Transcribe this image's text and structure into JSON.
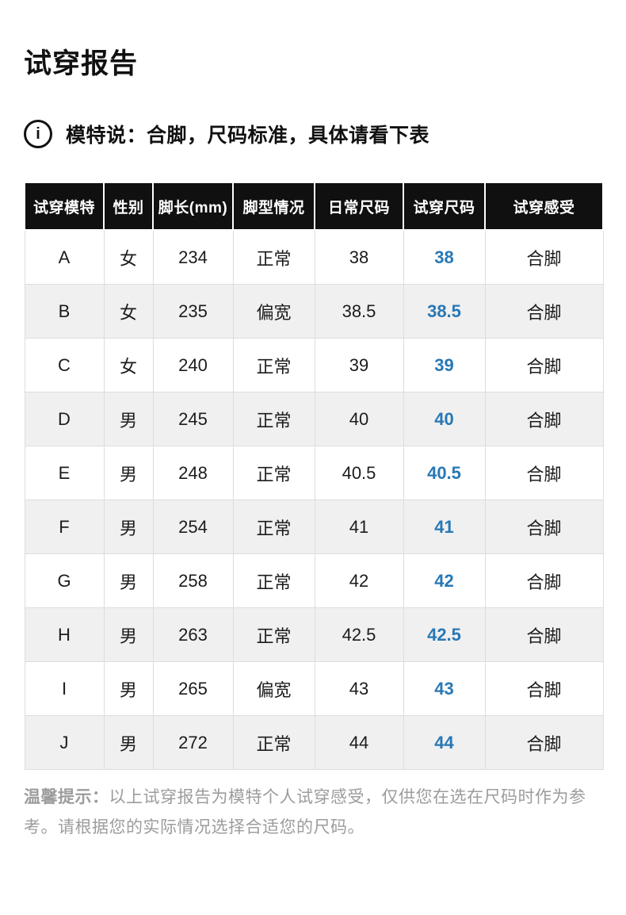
{
  "page": {
    "title": "试穿报告"
  },
  "notice": {
    "icon": "info-circle-icon",
    "icon_glyph": "i",
    "text": "模特说：合脚，尺码标准，具体请看下表"
  },
  "table": {
    "columns": [
      "试穿模特",
      "性别",
      "脚长(mm)",
      "脚型情况",
      "日常尺码",
      "试穿尺码",
      "试穿感受"
    ],
    "rows": [
      {
        "model": "A",
        "gender": "女",
        "foot_length": "234",
        "foot_type": "正常",
        "daily_size": "38",
        "tried_size": "38",
        "feel": "合脚"
      },
      {
        "model": "B",
        "gender": "女",
        "foot_length": "235",
        "foot_type": "偏宽",
        "daily_size": "38.5",
        "tried_size": "38.5",
        "feel": "合脚"
      },
      {
        "model": "C",
        "gender": "女",
        "foot_length": "240",
        "foot_type": "正常",
        "daily_size": "39",
        "tried_size": "39",
        "feel": "合脚"
      },
      {
        "model": "D",
        "gender": "男",
        "foot_length": "245",
        "foot_type": "正常",
        "daily_size": "40",
        "tried_size": "40",
        "feel": "合脚"
      },
      {
        "model": "E",
        "gender": "男",
        "foot_length": "248",
        "foot_type": "正常",
        "daily_size": "40.5",
        "tried_size": "40.5",
        "feel": "合脚"
      },
      {
        "model": "F",
        "gender": "男",
        "foot_length": "254",
        "foot_type": "正常",
        "daily_size": "41",
        "tried_size": "41",
        "feel": "合脚"
      },
      {
        "model": "G",
        "gender": "男",
        "foot_length": "258",
        "foot_type": "正常",
        "daily_size": "42",
        "tried_size": "42",
        "feel": "合脚"
      },
      {
        "model": "H",
        "gender": "男",
        "foot_length": "263",
        "foot_type": "正常",
        "daily_size": "42.5",
        "tried_size": "42.5",
        "feel": "合脚"
      },
      {
        "model": "I",
        "gender": "男",
        "foot_length": "265",
        "foot_type": "偏宽",
        "daily_size": "43",
        "tried_size": "43",
        "feel": "合脚"
      },
      {
        "model": "J",
        "gender": "男",
        "foot_length": "272",
        "foot_type": "正常",
        "daily_size": "44",
        "tried_size": "44",
        "feel": "合脚"
      }
    ]
  },
  "footer": {
    "label": "温馨提示：",
    "text": "以上试穿报告为模特个人试穿感受，仅供您在选在尺码时作为参考。请根据您的实际情况选择合适您的尺码。"
  },
  "colors": {
    "accent_blue": "#2878b5",
    "header_bg": "#101010",
    "row_alt_bg": "#f0f0f0",
    "footer_gray": "#9c9c9c"
  }
}
